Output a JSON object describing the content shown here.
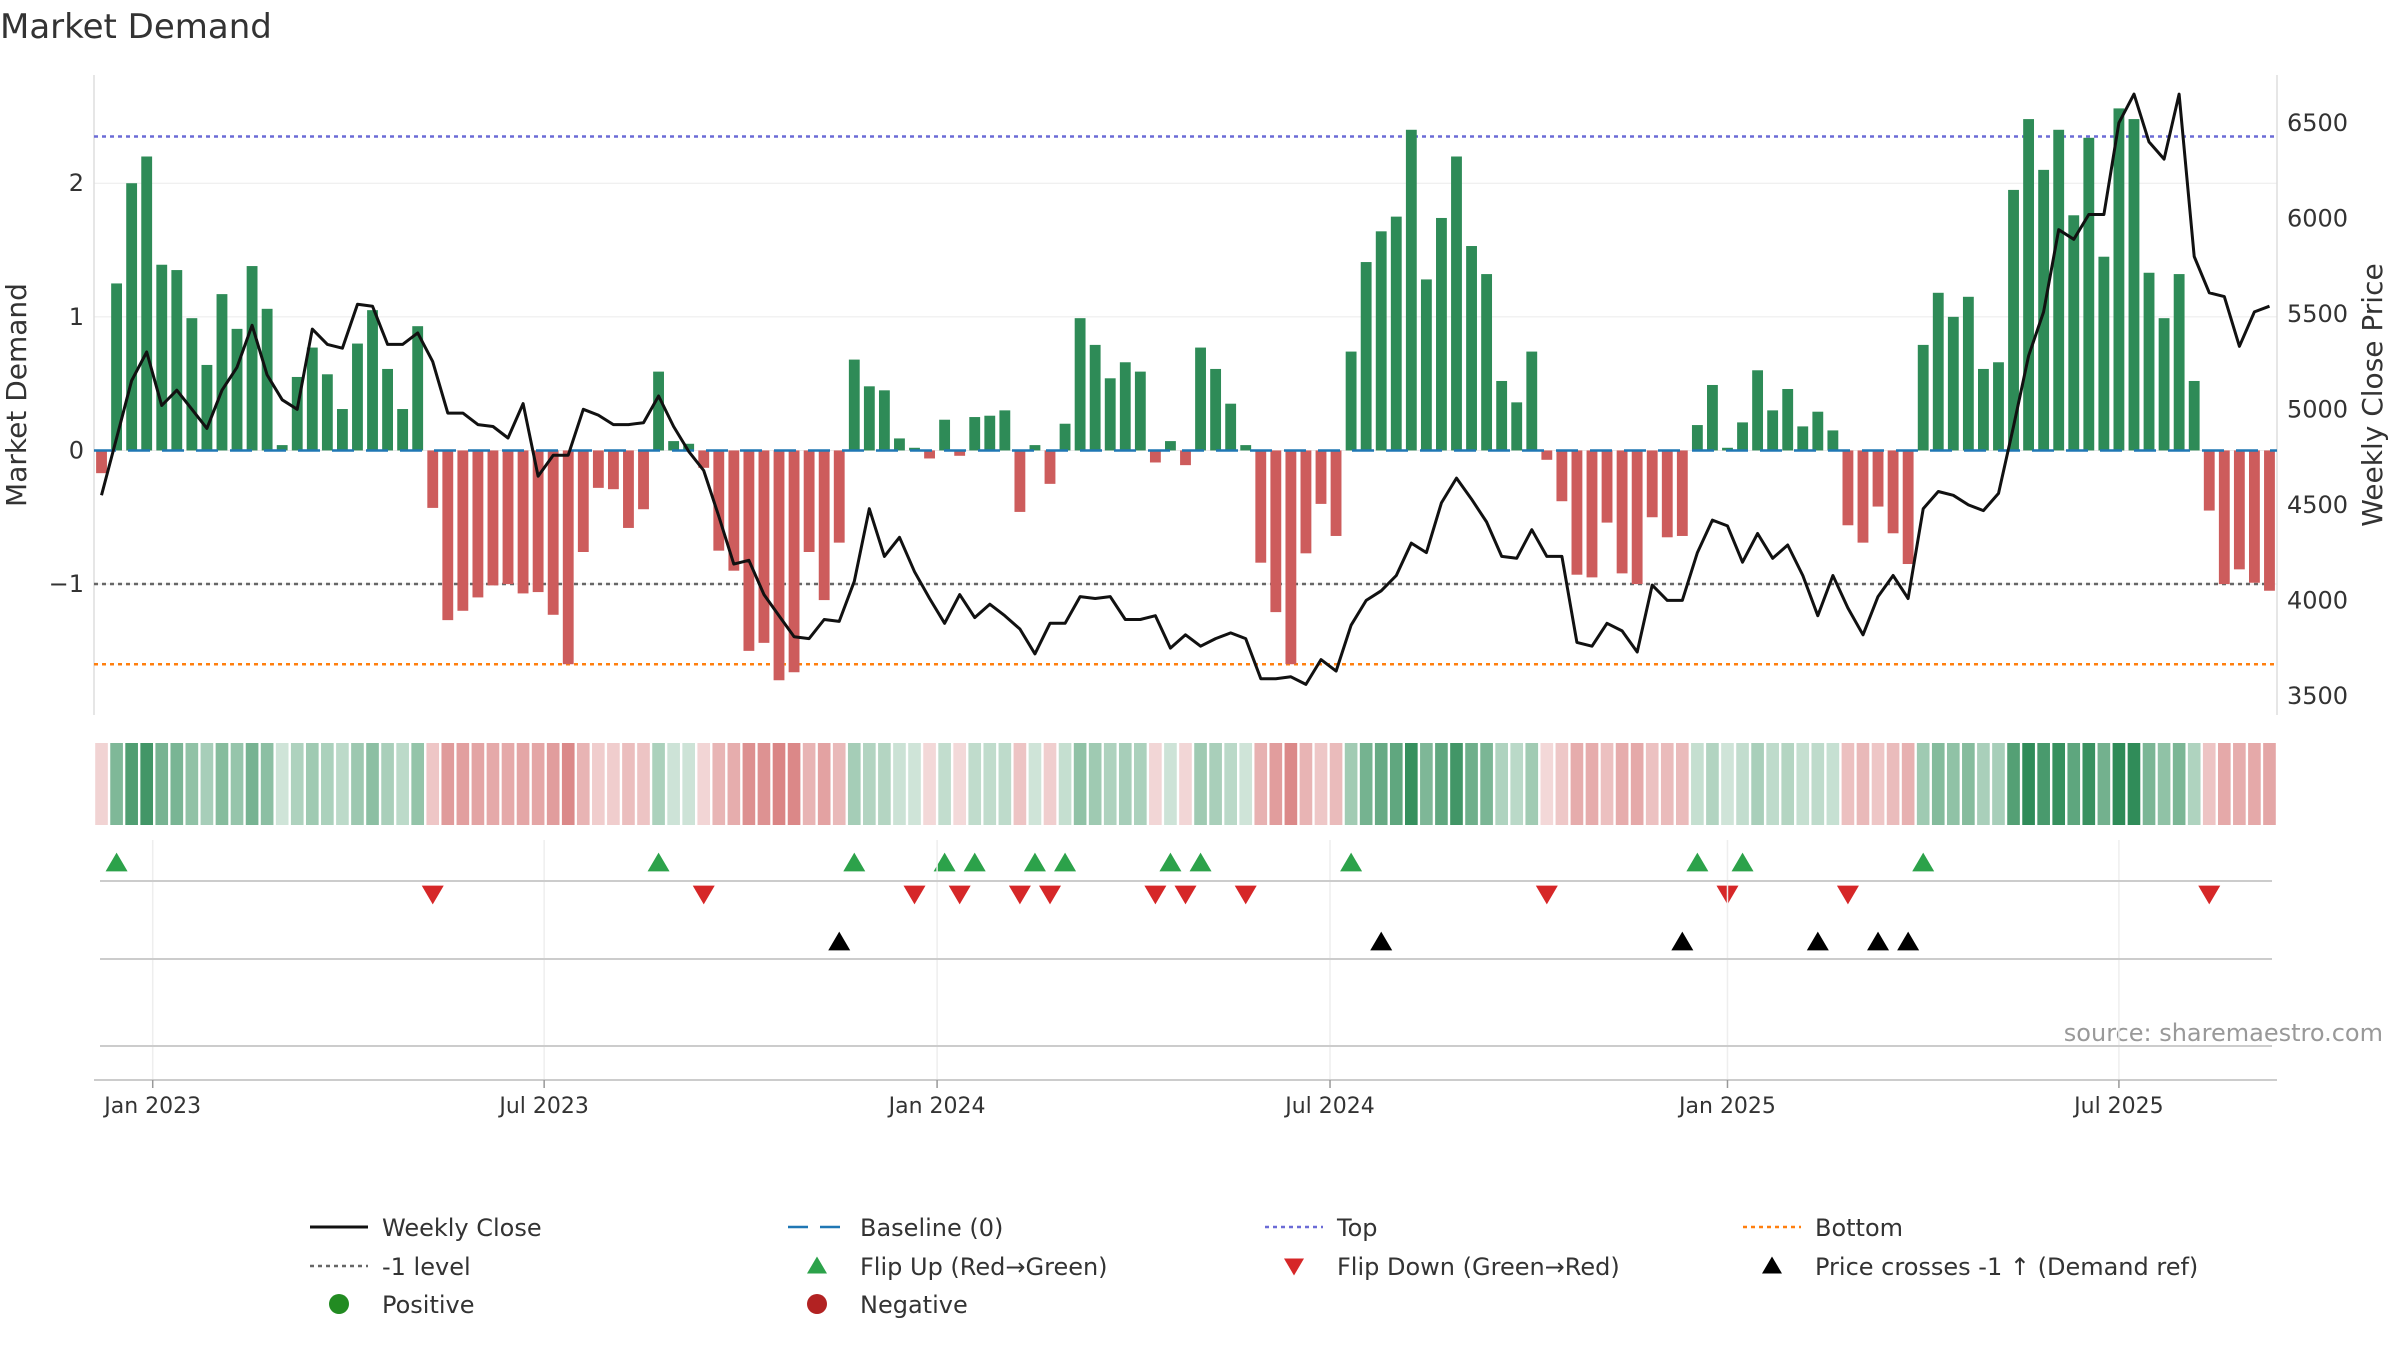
{
  "chart_data": {
    "type": "bar+line",
    "title": "Market Demand",
    "ylabel_left": "Market Demand",
    "ylabel_right": "Weekly Close Price",
    "source": "source: sharemaestro.com",
    "x_ticks": [
      "Jan 2023",
      "Jul 2023",
      "Jan 2024",
      "Jul 2024",
      "Jan 2025",
      "Jul 2025"
    ],
    "x_tick_weeks": [
      3.4,
      29.4,
      55.5,
      81.6,
      108.0,
      134.0
    ],
    "y_left_ticks": [
      -1,
      0,
      1,
      2
    ],
    "y_left_tick_labels": [
      "−1",
      "0",
      "1",
      "2"
    ],
    "ylim_left": [
      -1.98,
      2.81
    ],
    "y_right_ticks": [
      3500,
      4000,
      4500,
      5000,
      5500,
      6000,
      6500
    ],
    "y_right_tick_labels": [
      "3500",
      "4000",
      "4500",
      "5000",
      "5500",
      "6000",
      "6500"
    ],
    "ylim_right": [
      3400,
      6750
    ],
    "reference_lines": {
      "top": 2.35,
      "bottom": -1.6,
      "minus_one": -1,
      "baseline": 0
    },
    "colors": {
      "positive": "#2e8b57",
      "negative": "#cd5c5c",
      "close": "#111111",
      "baseline": "#1f77b4",
      "top": "#6b6bd6",
      "bottom": "#ff7f0e",
      "minus_one": "#666666",
      "flip_up": "#2ca24a",
      "flip_down": "#d62728",
      "cross": "#000000",
      "legend_positive": "#228b22",
      "legend_negative": "#b22222"
    },
    "demand": [
      -0.17,
      1.25,
      2.0,
      2.2,
      1.39,
      1.35,
      0.99,
      0.64,
      1.17,
      0.91,
      1.38,
      1.06,
      0.04,
      0.55,
      0.77,
      0.57,
      0.31,
      0.8,
      1.05,
      0.61,
      0.31,
      0.93,
      -0.43,
      -1.27,
      -1.2,
      -1.1,
      -1.01,
      -1.0,
      -1.07,
      -1.06,
      -1.23,
      -1.6,
      -0.76,
      -0.28,
      -0.29,
      -0.58,
      -0.44,
      0.59,
      0.07,
      0.05,
      -0.13,
      -0.75,
      -0.9,
      -1.5,
      -1.44,
      -1.72,
      -1.66,
      -0.76,
      -1.12,
      -0.69,
      0.68,
      0.48,
      0.45,
      0.09,
      0.02,
      -0.06,
      0.23,
      -0.04,
      0.25,
      0.26,
      0.3,
      -0.46,
      0.04,
      -0.25,
      0.2,
      0.99,
      0.79,
      0.54,
      0.66,
      0.59,
      -0.09,
      0.07,
      -0.11,
      0.77,
      0.61,
      0.35,
      0.04,
      -0.84,
      -1.21,
      -1.6,
      -0.77,
      -0.4,
      -0.64,
      0.74,
      1.41,
      1.64,
      1.75,
      2.4,
      1.28,
      1.74,
      2.2,
      1.53,
      1.32,
      0.52,
      0.36,
      0.74,
      -0.07,
      -0.38,
      -0.93,
      -0.95,
      -0.54,
      -0.92,
      -1.0,
      -0.5,
      -0.65,
      -0.64,
      0.19,
      0.49,
      0.02,
      0.21,
      0.6,
      0.3,
      0.46,
      0.18,
      0.29,
      0.15,
      -0.56,
      -0.69,
      -0.42,
      -0.62,
      -0.85,
      0.79,
      1.18,
      1.0,
      1.15,
      0.61,
      0.66,
      1.95,
      2.48,
      2.1,
      2.4,
      1.76,
      2.34,
      1.45,
      2.56,
      2.48,
      1.33,
      0.99,
      1.32,
      0.52,
      -0.45,
      -1.0,
      -0.89,
      -0.99,
      -1.05
    ],
    "close": [
      4550,
      4850,
      5150,
      5300,
      5020,
      5100,
      5000,
      4900,
      5100,
      5220,
      5440,
      5180,
      5050,
      5000,
      5420,
      5340,
      5320,
      5550,
      5540,
      5340,
      5340,
      5400,
      5250,
      4980,
      4980,
      4920,
      4910,
      4850,
      5030,
      4650,
      4760,
      4760,
      5000,
      4970,
      4920,
      4920,
      4930,
      5070,
      4910,
      4780,
      4680,
      4440,
      4190,
      4210,
      4030,
      3920,
      3810,
      3800,
      3900,
      3890,
      4100,
      4480,
      4230,
      4330,
      4150,
      4010,
      3880,
      4030,
      3910,
      3980,
      3920,
      3850,
      3720,
      3880,
      3880,
      4020,
      4010,
      4020,
      3900,
      3900,
      3920,
      3750,
      3820,
      3760,
      3800,
      3830,
      3800,
      3590,
      3590,
      3600,
      3560,
      3690,
      3630,
      3870,
      4000,
      4050,
      4130,
      4300,
      4250,
      4510,
      4640,
      4530,
      4410,
      4230,
      4220,
      4370,
      4230,
      4230,
      3780,
      3760,
      3880,
      3840,
      3730,
      4080,
      4000,
      4000,
      4250,
      4420,
      4390,
      4200,
      4350,
      4220,
      4290,
      4130,
      3920,
      4130,
      3960,
      3820,
      4020,
      4130,
      4010,
      4480,
      4570,
      4550,
      4500,
      4470,
      4560,
      4910,
      5280,
      5510,
      5940,
      5890,
      6020,
      6020,
      6500,
      6650,
      6400,
      6310,
      6650,
      5800,
      5610,
      5590,
      5330,
      5510,
      5540
    ],
    "flip_up_weeks": [
      1,
      37,
      50,
      56,
      58,
      62,
      64,
      71,
      73,
      83,
      106,
      109,
      121
    ],
    "flip_down_weeks": [
      22,
      40,
      54,
      57,
      61,
      63,
      70,
      72,
      76,
      96,
      108,
      116,
      140
    ],
    "cross_weeks": [
      49,
      85,
      105,
      114,
      118,
      120
    ],
    "legend": {
      "weekly_close": "Weekly Close",
      "baseline": "Baseline (0)",
      "top": "Top",
      "bottom": "Bottom",
      "minus_one": "-1 level",
      "flip_up": "Flip Up (Red→Green)",
      "flip_down": "Flip Down (Green→Red)",
      "cross": "Price crosses -1 ↑ (Demand ref)",
      "positive": "Positive",
      "negative": "Negative"
    }
  }
}
